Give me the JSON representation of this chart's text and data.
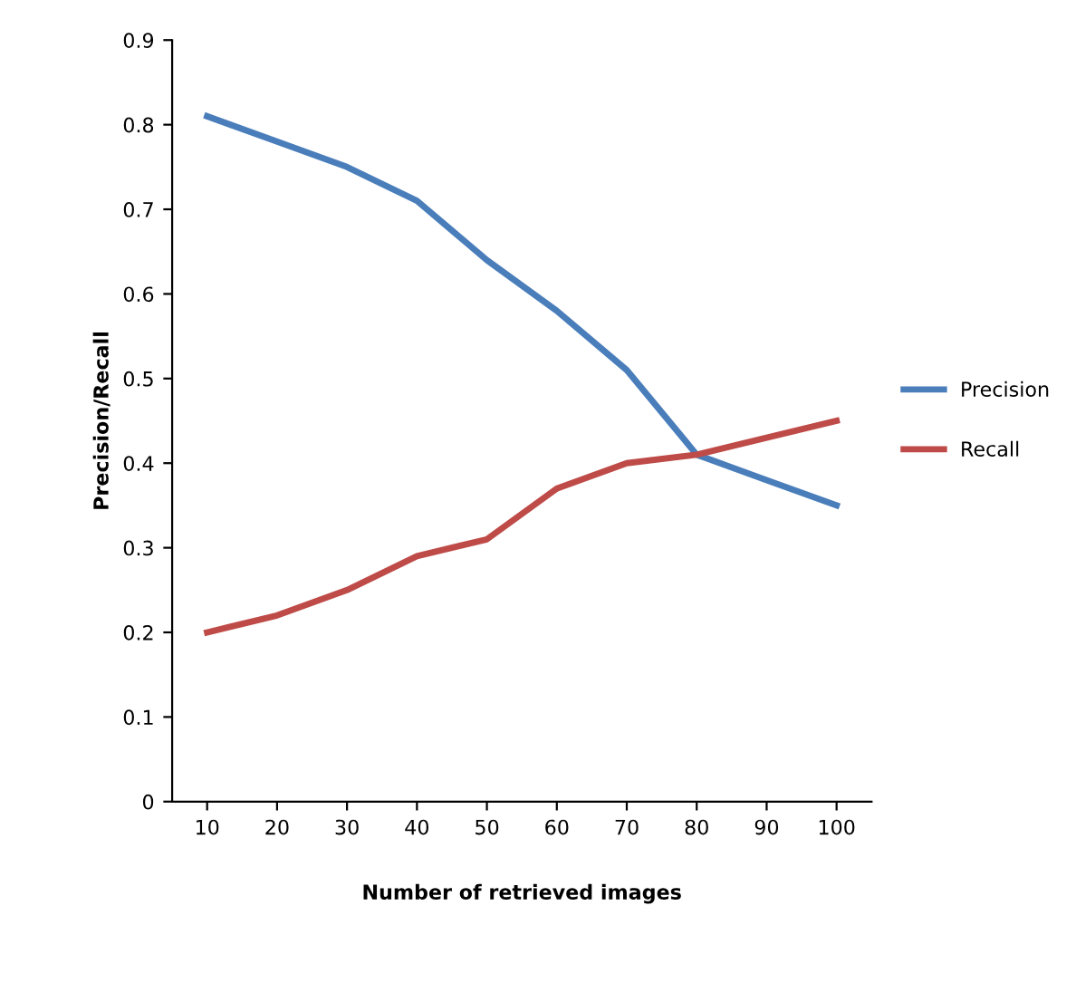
{
  "chart_data": {
    "type": "line",
    "xlabel": "Number of retrieved images",
    "ylabel": "Precision/Recall",
    "categories": [
      "10",
      "20",
      "30",
      "40",
      "50",
      "60",
      "70",
      "80",
      "90",
      "100"
    ],
    "series": [
      {
        "name": "Precision",
        "color": "#4a7ebb",
        "values": [
          0.81,
          0.78,
          0.75,
          0.71,
          0.64,
          0.58,
          0.51,
          0.41,
          0.38,
          0.35
        ]
      },
      {
        "name": "Recall",
        "color": "#be4b48",
        "values": [
          0.2,
          0.22,
          0.25,
          0.29,
          0.31,
          0.37,
          0.4,
          0.41,
          0.43,
          0.45
        ]
      }
    ],
    "ylim": [
      0,
      0.9
    ],
    "yticks": [
      0,
      0.1,
      0.2,
      0.3,
      0.4,
      0.5,
      0.6,
      0.7,
      0.8,
      0.9
    ],
    "grid": false,
    "legend": "right",
    "marker": "none",
    "line_style": "solid"
  }
}
